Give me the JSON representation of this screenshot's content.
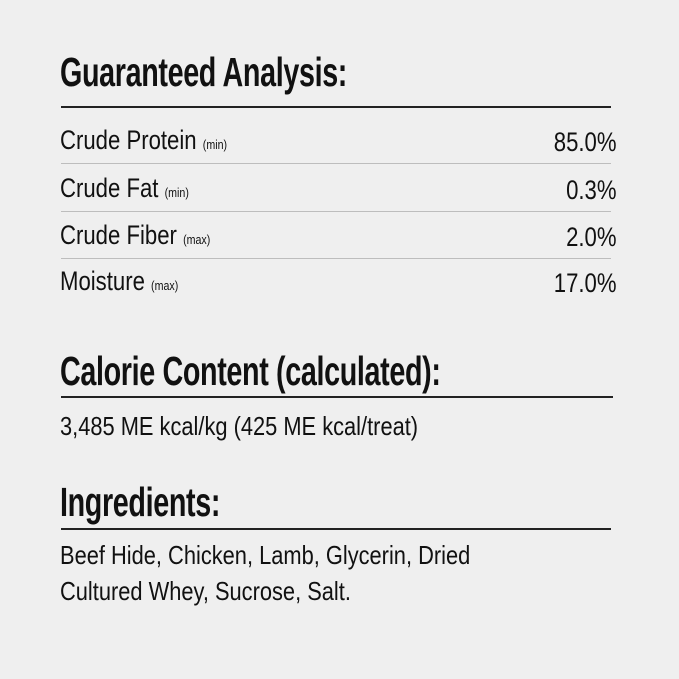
{
  "guaranteed_analysis": {
    "title": "Guaranteed Analysis:",
    "rows": [
      {
        "label": "Crude Protein",
        "qualifier": "(min)",
        "value": "85.0%"
      },
      {
        "label": "Crude Fat",
        "qualifier": "(min)",
        "value": "0.3%"
      },
      {
        "label": "Crude Fiber",
        "qualifier": "(max)",
        "value": "2.0%"
      },
      {
        "label": "Moisture",
        "qualifier": "(max)",
        "value": "17.0%"
      }
    ]
  },
  "calorie_content": {
    "title": "Calorie Content (calculated):",
    "text": "3,485 ME kcal/kg (425 ME kcal/treat)"
  },
  "ingredients": {
    "title": "Ingredients:",
    "lines": [
      "Beef Hide, Chicken, Lamb, Glycerin, Dried",
      "Cultured Whey, Sucrose, Salt."
    ]
  }
}
